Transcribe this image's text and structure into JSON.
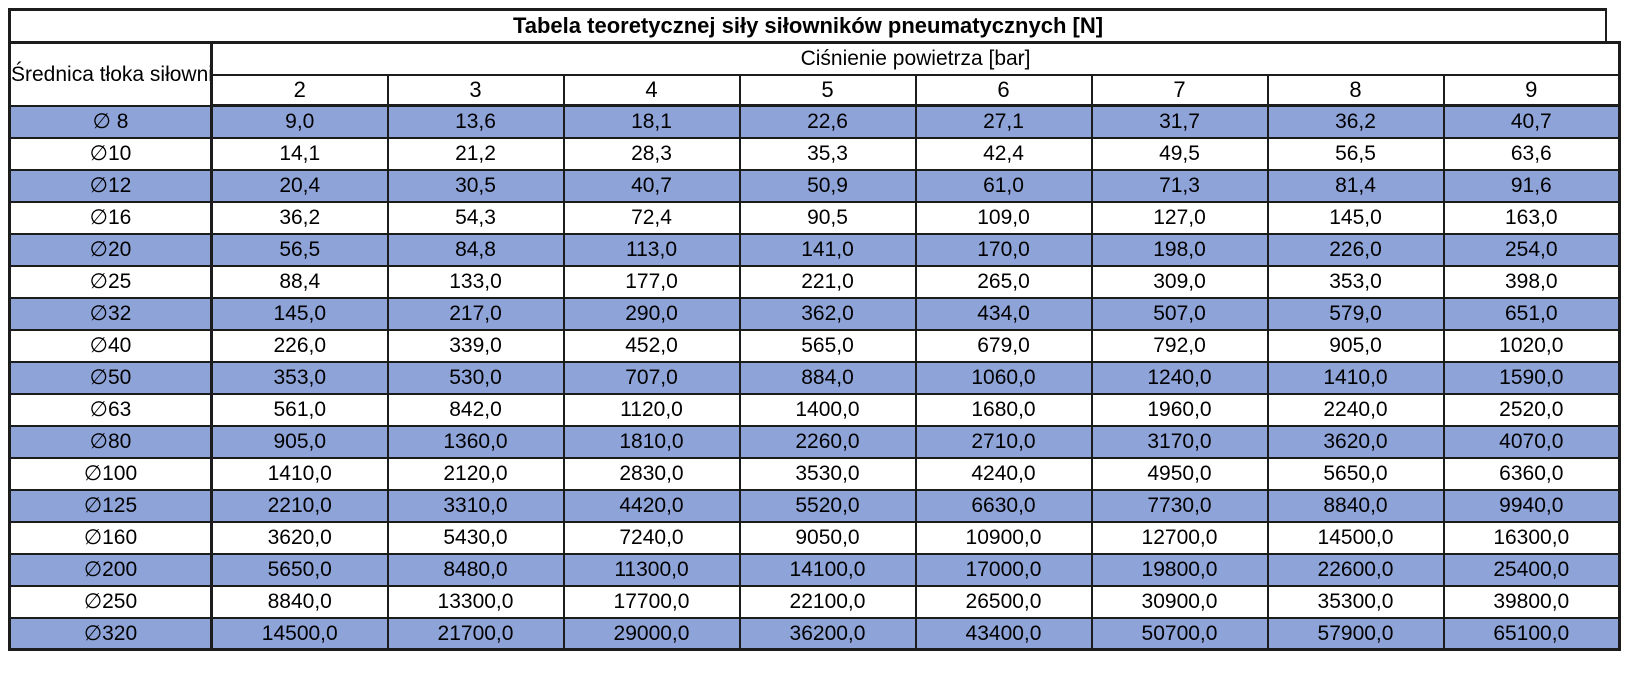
{
  "title": "Tabela teoretycznej siły siłowników pneumatycznych [N]",
  "colors": {
    "stripe_fill": "#8EA3D8",
    "border": "#1c1c1c",
    "background": "#ffffff",
    "text": "#000000"
  },
  "table": {
    "diameter_header": "Średnica tłoka siłownika",
    "pressure_header": "Ciśnienie powietrza [bar]",
    "pressure_values": [
      "2",
      "3",
      "4",
      "5",
      "6",
      "7",
      "8",
      "9"
    ],
    "rows": [
      {
        "diameter": "∅ 8",
        "values": [
          "9,0",
          "13,6",
          "18,1",
          "22,6",
          "27,1",
          "31,7",
          "36,2",
          "40,7"
        ]
      },
      {
        "diameter": "∅10",
        "values": [
          "14,1",
          "21,2",
          "28,3",
          "35,3",
          "42,4",
          "49,5",
          "56,5",
          "63,6"
        ]
      },
      {
        "diameter": "∅12",
        "values": [
          "20,4",
          "30,5",
          "40,7",
          "50,9",
          "61,0",
          "71,3",
          "81,4",
          "91,6"
        ]
      },
      {
        "diameter": "∅16",
        "values": [
          "36,2",
          "54,3",
          "72,4",
          "90,5",
          "109,0",
          "127,0",
          "145,0",
          "163,0"
        ]
      },
      {
        "diameter": "∅20",
        "values": [
          "56,5",
          "84,8",
          "113,0",
          "141,0",
          "170,0",
          "198,0",
          "226,0",
          "254,0"
        ]
      },
      {
        "diameter": "∅25",
        "values": [
          "88,4",
          "133,0",
          "177,0",
          "221,0",
          "265,0",
          "309,0",
          "353,0",
          "398,0"
        ]
      },
      {
        "diameter": "∅32",
        "values": [
          "145,0",
          "217,0",
          "290,0",
          "362,0",
          "434,0",
          "507,0",
          "579,0",
          "651,0"
        ]
      },
      {
        "diameter": "∅40",
        "values": [
          "226,0",
          "339,0",
          "452,0",
          "565,0",
          "679,0",
          "792,0",
          "905,0",
          "1020,0"
        ]
      },
      {
        "diameter": "∅50",
        "values": [
          "353,0",
          "530,0",
          "707,0",
          "884,0",
          "1060,0",
          "1240,0",
          "1410,0",
          "1590,0"
        ]
      },
      {
        "diameter": "∅63",
        "values": [
          "561,0",
          "842,0",
          "1120,0",
          "1400,0",
          "1680,0",
          "1960,0",
          "2240,0",
          "2520,0"
        ]
      },
      {
        "diameter": "∅80",
        "values": [
          "905,0",
          "1360,0",
          "1810,0",
          "2260,0",
          "2710,0",
          "3170,0",
          "3620,0",
          "4070,0"
        ]
      },
      {
        "diameter": "∅100",
        "values": [
          "1410,0",
          "2120,0",
          "2830,0",
          "3530,0",
          "4240,0",
          "4950,0",
          "5650,0",
          "6360,0"
        ]
      },
      {
        "diameter": "∅125",
        "values": [
          "2210,0",
          "3310,0",
          "4420,0",
          "5520,0",
          "6630,0",
          "7730,0",
          "8840,0",
          "9940,0"
        ]
      },
      {
        "diameter": "∅160",
        "values": [
          "3620,0",
          "5430,0",
          "7240,0",
          "9050,0",
          "10900,0",
          "12700,0",
          "14500,0",
          "16300,0"
        ]
      },
      {
        "diameter": "∅200",
        "values": [
          "5650,0",
          "8480,0",
          "11300,0",
          "14100,0",
          "17000,0",
          "19800,0",
          "22600,0",
          "25400,0"
        ]
      },
      {
        "diameter": "∅250",
        "values": [
          "8840,0",
          "13300,0",
          "17700,0",
          "22100,0",
          "26500,0",
          "30900,0",
          "35300,0",
          "39800,0"
        ]
      },
      {
        "diameter": "∅320",
        "values": [
          "14500,0",
          "21700,0",
          "29000,0",
          "36200,0",
          "43400,0",
          "50700,0",
          "57900,0",
          "65100,0"
        ]
      }
    ]
  }
}
